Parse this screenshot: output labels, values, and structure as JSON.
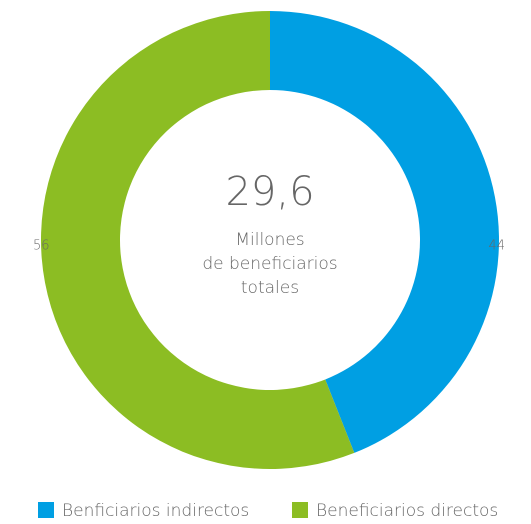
{
  "chart_data": {
    "type": "donut",
    "categories": [
      "Benficiarios indirectos",
      "Beneficiarios directos"
    ],
    "values": [
      44,
      56
    ],
    "colors": [
      "#009fe3",
      "#8cbd23"
    ],
    "center_value": "29,6",
    "center_label": [
      "Millones",
      "de beneficiarios",
      "totales"
    ],
    "legend": "bottom"
  }
}
